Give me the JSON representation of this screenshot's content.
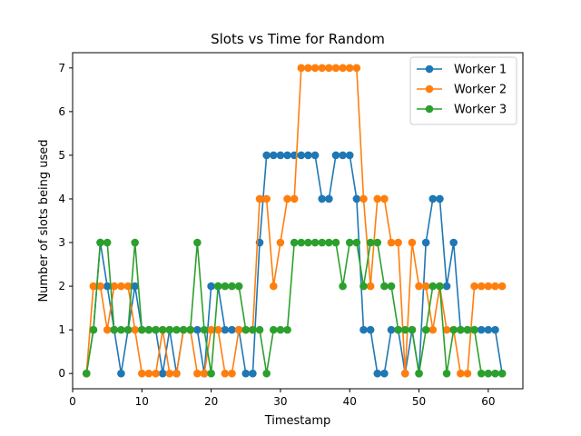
{
  "chart_data": {
    "type": "line",
    "title": "Slots vs Time for Random",
    "xlabel": "Timestamp",
    "ylabel": "Number of slots being used",
    "xlim": [
      0.0,
      65.0
    ],
    "ylim": [
      -0.35,
      7.35
    ],
    "xticks": [
      0,
      10,
      20,
      30,
      40,
      50,
      60
    ],
    "yticks": [
      0,
      1,
      2,
      3,
      4,
      5,
      6,
      7
    ],
    "legend_position": "top-right",
    "grid": false,
    "marker": "circle",
    "x": [
      2,
      3,
      4,
      5,
      6,
      7,
      8,
      9,
      10,
      11,
      12,
      13,
      14,
      15,
      16,
      17,
      18,
      19,
      20,
      21,
      22,
      23,
      24,
      25,
      26,
      27,
      28,
      29,
      30,
      31,
      32,
      33,
      34,
      35,
      36,
      37,
      38,
      39,
      40,
      41,
      42,
      43,
      44,
      45,
      46,
      47,
      48,
      49,
      50,
      51,
      52,
      53,
      54,
      55,
      56,
      57,
      58,
      59,
      60,
      61,
      62
    ],
    "series": [
      {
        "name": "Worker 1",
        "color": "#1f77b4",
        "values": [
          0,
          1,
          3,
          2,
          1,
          0,
          1,
          2,
          1,
          1,
          1,
          0,
          1,
          0,
          1,
          1,
          1,
          0,
          2,
          2,
          1,
          1,
          1,
          0,
          0,
          3,
          5,
          5,
          5,
          5,
          5,
          5,
          5,
          5,
          4,
          4,
          5,
          5,
          5,
          4,
          1,
          1,
          0,
          0,
          1,
          1,
          0,
          1,
          0,
          3,
          4,
          4,
          2,
          3,
          1,
          1,
          1,
          1,
          1,
          1,
          0
        ]
      },
      {
        "name": "Worker 2",
        "color": "#ff7f0e",
        "values": [
          0,
          2,
          2,
          1,
          2,
          2,
          2,
          1,
          0,
          0,
          0,
          1,
          0,
          0,
          1,
          1,
          0,
          0,
          1,
          1,
          0,
          0,
          1,
          1,
          1,
          4,
          4,
          2,
          3,
          4,
          4,
          7,
          7,
          7,
          7,
          7,
          7,
          7,
          7,
          7,
          4,
          2,
          4,
          4,
          3,
          3,
          0,
          3,
          2,
          2,
          1,
          2,
          1,
          1,
          0,
          0,
          2,
          2,
          2,
          2,
          2
        ]
      },
      {
        "name": "Worker 3",
        "color": "#2ca02c",
        "values": [
          0,
          1,
          3,
          3,
          1,
          1,
          1,
          3,
          1,
          1,
          1,
          1,
          1,
          1,
          1,
          1,
          3,
          1,
          0,
          2,
          2,
          2,
          2,
          1,
          1,
          1,
          0,
          1,
          1,
          1,
          3,
          3,
          3,
          3,
          3,
          3,
          3,
          2,
          3,
          3,
          2,
          3,
          3,
          2,
          2,
          1,
          1,
          1,
          0,
          1,
          2,
          2,
          0,
          1,
          1,
          1,
          1,
          0,
          0,
          0,
          0
        ]
      }
    ]
  }
}
